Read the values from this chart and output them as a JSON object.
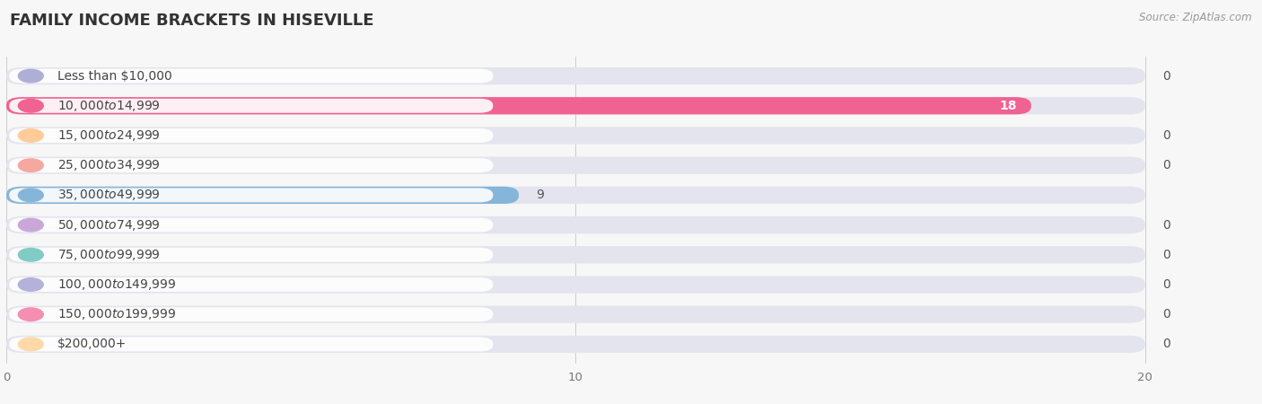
{
  "title": "FAMILY INCOME BRACKETS IN HISEVILLE",
  "source": "Source: ZipAtlas.com",
  "categories": [
    "Less than $10,000",
    "$10,000 to $14,999",
    "$15,000 to $24,999",
    "$25,000 to $34,999",
    "$35,000 to $49,999",
    "$50,000 to $74,999",
    "$75,000 to $99,999",
    "$100,000 to $149,999",
    "$150,000 to $199,999",
    "$200,000+"
  ],
  "values": [
    0,
    18,
    0,
    0,
    9,
    0,
    0,
    0,
    0,
    0
  ],
  "bar_colors": [
    "#aeaed6",
    "#f06292",
    "#ffcc99",
    "#f4a8a0",
    "#85b5d9",
    "#c9a8d9",
    "#80ccc4",
    "#b3b3d9",
    "#f48fb1",
    "#ffd9a8"
  ],
  "xlim": [
    0,
    20
  ],
  "xticks": [
    0,
    10,
    20
  ],
  "background_color": "#f7f7f7",
  "bar_bg_color": "#e4e4ee",
  "title_fontsize": 13,
  "label_fontsize": 10,
  "value_fontsize": 10,
  "source_fontsize": 8.5,
  "title_color": "#333333",
  "label_color": "#444444",
  "value_color_outside": "#555555",
  "value_color_inside": "#ffffff"
}
